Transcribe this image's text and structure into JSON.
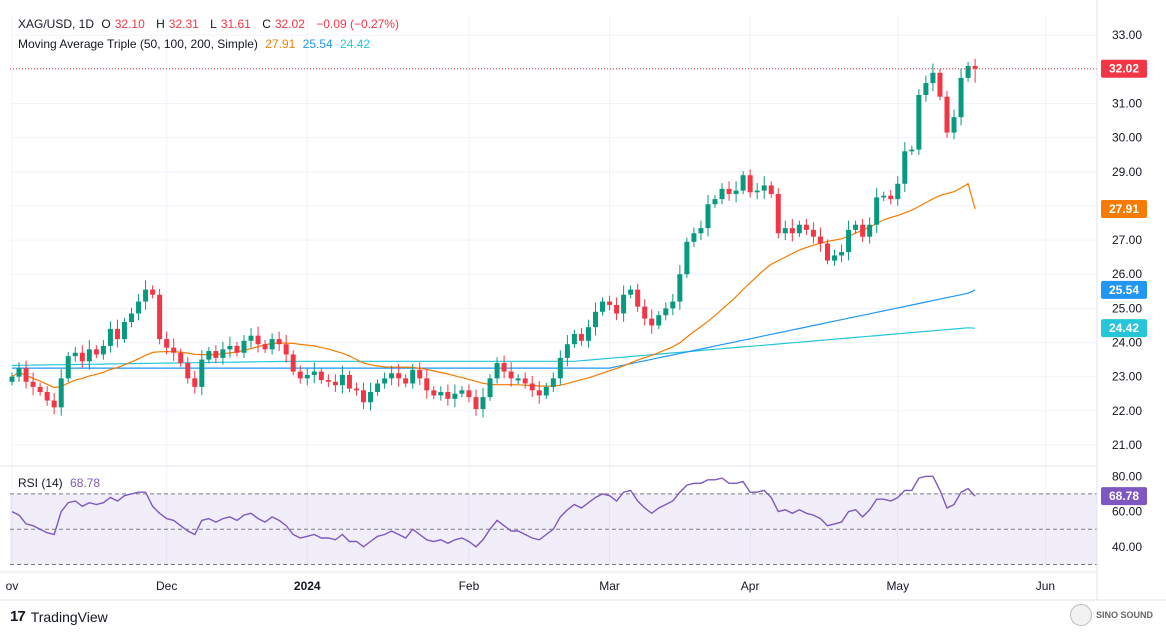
{
  "header": {
    "symbol": "XAG/USD, 1D",
    "open_label": "O",
    "open": "32.10",
    "high_label": "H",
    "high": "32.31",
    "low_label": "L",
    "low": "31.61",
    "close_label": "C",
    "close": "32.02",
    "change": "−0.09 (−0.27%)"
  },
  "ma_legend": {
    "label": "Moving Average Triple (50, 100, 200, Simple)",
    "ma50": "27.91",
    "ma100": "25.54",
    "ma200": "24.42"
  },
  "rsi_legend": {
    "label": "RSI (14)",
    "value": "68.78"
  },
  "footer": {
    "brand": "TradingView",
    "logo_glyph": "17"
  },
  "watermark": {
    "text_line1": "SINO SOUND",
    "text_line2": ""
  },
  "colors": {
    "up": "#089981",
    "down": "#f23645",
    "ma50": "#f57c00",
    "ma100": "#2196f3",
    "ma200": "#26c6da",
    "rsi": "#7e57c2",
    "price_tag": "#f23645"
  },
  "chart_data": {
    "type": "candlestick",
    "price_axis": {
      "ticks": [
        "33.00",
        "32.00",
        "31.00",
        "30.00",
        "29.00",
        "28.00",
        "27.00",
        "26.00",
        "25.00",
        "24.00",
        "23.00",
        "22.00",
        "21.00"
      ],
      "ylim": [
        20.5,
        33.3
      ]
    },
    "rsi_axis": {
      "ticks": [
        "80.00",
        "60.00",
        "40.00"
      ],
      "ylim": [
        28,
        83
      ],
      "upper_band": 70,
      "lower_band": 30,
      "mid": 50
    },
    "x_ticks": [
      {
        "label": "ov",
        "index": 0
      },
      {
        "label": "Dec",
        "index": 22
      },
      {
        "label": "2024",
        "index": 42
      },
      {
        "label": "Feb",
        "index": 65
      },
      {
        "label": "Mar",
        "index": 85
      },
      {
        "label": "Apr",
        "index": 105
      },
      {
        "label": "May",
        "index": 126
      },
      {
        "label": "Jun",
        "index": 147
      }
    ],
    "price_tags": [
      {
        "label": "32.02",
        "value": 32.02,
        "color": "#f23645"
      },
      {
        "label": "27.91",
        "value": 27.91,
        "color": "#f57c00"
      },
      {
        "label": "25.54",
        "value": 25.54,
        "color": "#2196f3"
      },
      {
        "label": "24.42",
        "value": 24.42,
        "color": "#26c6da"
      }
    ],
    "rsi_tag": {
      "label": "68.78",
      "value": 68.78
    },
    "close": [
      23.0,
      23.25,
      22.85,
      22.7,
      22.55,
      22.3,
      22.1,
      22.95,
      23.6,
      23.7,
      23.45,
      23.8,
      23.65,
      23.9,
      24.4,
      24.1,
      24.6,
      24.85,
      25.2,
      25.55,
      25.4,
      24.1,
      23.85,
      23.7,
      23.4,
      22.95,
      22.7,
      23.5,
      23.75,
      23.55,
      23.8,
      23.9,
      23.7,
      24.05,
      24.2,
      23.95,
      23.8,
      24.1,
      23.95,
      23.65,
      23.15,
      22.95,
      23.05,
      23.15,
      22.9,
      22.85,
      22.75,
      23.05,
      22.65,
      22.6,
      22.25,
      22.55,
      22.8,
      22.95,
      23.1,
      22.95,
      22.8,
      23.2,
      22.95,
      22.6,
      22.45,
      22.55,
      22.35,
      22.5,
      22.6,
      22.4,
      22.05,
      22.4,
      22.95,
      23.4,
      23.15,
      22.95,
      22.95,
      22.8,
      22.6,
      22.45,
      22.7,
      22.95,
      23.55,
      23.95,
      24.25,
      24.05,
      24.45,
      24.9,
      25.2,
      25.1,
      24.85,
      25.4,
      25.55,
      25.05,
      24.7,
      24.5,
      24.8,
      25.0,
      25.2,
      26.0,
      26.95,
      27.2,
      27.35,
      28.05,
      28.2,
      28.5,
      28.35,
      28.45,
      28.9,
      28.4,
      28.45,
      28.6,
      28.35,
      27.2,
      27.35,
      27.2,
      27.45,
      27.3,
      27.1,
      26.9,
      26.4,
      26.55,
      26.65,
      27.3,
      27.45,
      27.1,
      27.45,
      28.25,
      28.3,
      28.2,
      28.65,
      29.6,
      29.65,
      31.25,
      31.6,
      31.9,
      31.2,
      30.15,
      30.6,
      31.75,
      32.1,
      32.02
    ],
    "rsi": [
      60,
      58,
      53,
      52,
      50,
      48,
      47,
      60,
      65,
      66,
      63,
      65,
      64,
      65,
      68,
      66,
      69,
      70,
      71,
      71,
      63,
      59,
      56,
      55,
      52,
      49,
      47,
      55,
      56,
      54,
      56,
      57,
      55,
      58,
      59,
      56,
      54,
      57,
      55,
      52,
      47,
      45,
      46,
      47,
      45,
      45,
      44,
      47,
      43,
      43,
      40,
      43,
      46,
      47,
      49,
      47,
      45,
      50,
      47,
      44,
      43,
      44,
      42,
      44,
      45,
      43,
      40,
      44,
      50,
      55,
      52,
      49,
      49,
      47,
      45,
      44,
      47,
      50,
      57,
      61,
      64,
      62,
      65,
      68,
      70,
      69,
      66,
      71,
      72,
      66,
      62,
      59,
      62,
      64,
      66,
      71,
      75,
      76,
      76,
      78,
      78,
      79,
      76,
      76,
      77,
      71,
      71,
      72,
      68,
      60,
      61,
      59,
      61,
      59,
      58,
      56,
      52,
      53,
      54,
      60,
      61,
      57,
      61,
      67,
      67,
      66,
      68,
      72,
      72,
      79,
      80,
      80,
      72,
      62,
      64,
      71,
      73,
      68.78
    ]
  }
}
